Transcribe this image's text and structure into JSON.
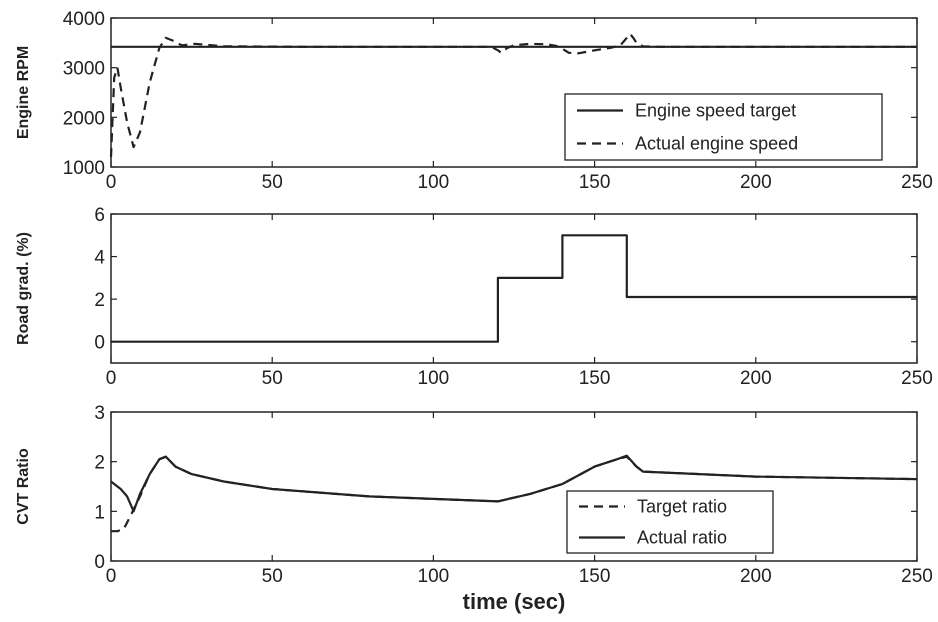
{
  "chart_data": [
    {
      "type": "line",
      "ylabel": "Engine RPM",
      "xlim": [
        0,
        250
      ],
      "ylim": [
        1000,
        4000
      ],
      "xticks": [
        "0",
        "50",
        "100",
        "150",
        "200",
        "250"
      ],
      "yticks": [
        "1000",
        "2000",
        "3000",
        "4000"
      ],
      "legend_position": "bottom-right",
      "series": [
        {
          "name": "Engine speed target",
          "style": "solid",
          "x": [
            0,
            250
          ],
          "y": [
            3420,
            3420
          ]
        },
        {
          "name": "Actual engine speed",
          "style": "dashed",
          "x": [
            0,
            1,
            2,
            3,
            5,
            7,
            9,
            12,
            15,
            17,
            19,
            22,
            26,
            35,
            60,
            100,
            118,
            120,
            121,
            123,
            125,
            130,
            135,
            138,
            140,
            142,
            145,
            150,
            155,
            158,
            160,
            161,
            162,
            163,
            165,
            170,
            200,
            250
          ],
          "y": [
            1200,
            2800,
            3000,
            2600,
            1900,
            1400,
            1700,
            2700,
            3400,
            3600,
            3550,
            3450,
            3480,
            3430,
            3420,
            3420,
            3420,
            3350,
            3300,
            3400,
            3450,
            3480,
            3470,
            3440,
            3380,
            3300,
            3290,
            3350,
            3400,
            3450,
            3600,
            3680,
            3600,
            3500,
            3430,
            3420,
            3420,
            3420
          ]
        }
      ]
    },
    {
      "type": "line",
      "ylabel": "Road grad. (%)",
      "xlim": [
        0,
        250
      ],
      "ylim": [
        -1,
        6
      ],
      "xticks": [
        "0",
        "50",
        "100",
        "150",
        "200",
        "250"
      ],
      "yticks": [
        "0",
        "2",
        "4",
        "6"
      ],
      "series": [
        {
          "style": "solid",
          "x": [
            0,
            120,
            120,
            140,
            140,
            160,
            160,
            250
          ],
          "y": [
            0,
            0,
            3,
            3,
            5,
            5,
            2.1,
            2.1
          ]
        }
      ]
    },
    {
      "type": "line",
      "ylabel": "CVT Ratio",
      "xlabel": "time (sec)",
      "xlim": [
        0,
        250
      ],
      "ylim": [
        0,
        3
      ],
      "xticks": [
        "0",
        "50",
        "100",
        "150",
        "200",
        "250"
      ],
      "yticks": [
        "0",
        "1",
        "2",
        "3"
      ],
      "legend_position": "bottom-right",
      "series": [
        {
          "name": "Target ratio",
          "style": "dashed",
          "x": [
            0,
            2,
            4,
            6,
            9,
            12,
            15,
            17,
            20,
            25,
            35,
            50,
            80,
            100,
            120,
            130,
            140,
            150,
            157,
            160,
            163,
            165,
            200,
            250
          ],
          "y": [
            0.6,
            0.6,
            0.65,
            0.9,
            1.3,
            1.75,
            2.05,
            2.1,
            1.9,
            1.75,
            1.6,
            1.45,
            1.3,
            1.25,
            1.2,
            1.35,
            1.55,
            1.9,
            2.05,
            2.1,
            1.9,
            1.8,
            1.7,
            1.65
          ]
        },
        {
          "name": "Actual ratio",
          "style": "solid",
          "x": [
            0,
            1,
            3,
            5,
            7,
            9,
            12,
            15,
            17,
            20,
            25,
            35,
            50,
            80,
            100,
            120,
            130,
            140,
            150,
            157,
            160,
            163,
            165,
            200,
            250
          ],
          "y": [
            1.6,
            1.55,
            1.45,
            1.3,
            1.0,
            1.35,
            1.75,
            2.05,
            2.1,
            1.9,
            1.75,
            1.6,
            1.45,
            1.3,
            1.25,
            1.2,
            1.35,
            1.55,
            1.9,
            2.05,
            2.12,
            1.9,
            1.8,
            1.7,
            1.65
          ]
        }
      ]
    }
  ]
}
